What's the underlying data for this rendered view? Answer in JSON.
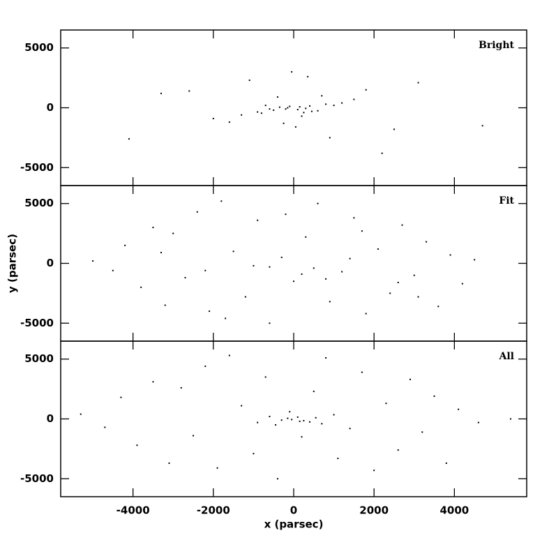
{
  "chart_data": [
    {
      "type": "scatter",
      "annotation": "Bright",
      "color": "#000000",
      "x": [
        -200,
        150,
        400,
        -500,
        800,
        -900,
        1200,
        -1300,
        300,
        -100,
        600,
        -700,
        1800,
        -2000,
        2500,
        -2600,
        3100,
        -3300,
        50,
        -400,
        900,
        -1100,
        1500,
        -1600,
        200,
        700,
        -250,
        350,
        -50,
        4700,
        -4100,
        2200,
        -150,
        100,
        -350,
        450,
        -600,
        1000,
        -800,
        250
      ],
      "y": [
        -100,
        80,
        150,
        -200,
        300,
        -350,
        400,
        -600,
        -50,
        120,
        -250,
        200,
        1500,
        -900,
        -1800,
        1400,
        2100,
        1200,
        -1600,
        900,
        -2500,
        2300,
        700,
        -1200,
        -700,
        1000,
        -1300,
        2600,
        3000,
        -1500,
        -2600,
        -3800,
        0,
        -150,
        50,
        -300,
        -100,
        200,
        -450,
        -400
      ],
      "xlim": [
        -5800,
        5800
      ],
      "ylim": [
        -6500,
        6500
      ],
      "yticks": [
        -5000,
        0,
        5000
      ]
    },
    {
      "type": "scatter",
      "annotation": "Fit",
      "color": "#000000",
      "ylabel": "y (parsec)",
      "x": [
        -5000,
        -4500,
        -4200,
        -3800,
        -3500,
        -3200,
        -3000,
        -2700,
        -2400,
        -2100,
        -1800,
        -1500,
        -1200,
        -900,
        -600,
        -300,
        0,
        300,
        600,
        900,
        1200,
        1500,
        1800,
        2100,
        2400,
        2700,
        3000,
        3300,
        3600,
        3900,
        4200,
        4500,
        -2200,
        -1000,
        200,
        1400,
        2600,
        -3300,
        -600,
        800,
        1700,
        -1700,
        3100,
        -200,
        500
      ],
      "y": [
        200,
        -600,
        1500,
        -2000,
        3000,
        -3500,
        2500,
        -1200,
        4300,
        -4000,
        5200,
        1000,
        -2800,
        3600,
        -5000,
        500,
        -1500,
        2200,
        5000,
        -3200,
        -700,
        3800,
        -4200,
        1200,
        -2500,
        3200,
        -1000,
        1800,
        -3600,
        700,
        -1700,
        300,
        -600,
        -200,
        -900,
        400,
        -1600,
        900,
        -300,
        -1300,
        2700,
        -4600,
        -2800,
        4100,
        -400
      ],
      "xlim": [
        -5800,
        5800
      ],
      "ylim": [
        -6500,
        6500
      ],
      "yticks": [
        -5000,
        0,
        5000
      ]
    },
    {
      "type": "scatter",
      "annotation": "All",
      "color": "#000000",
      "xlabel": "x (parsec)",
      "x": [
        -5300,
        -4700,
        -4300,
        -3900,
        -3500,
        -3100,
        -2800,
        -2500,
        -2200,
        -1900,
        -1600,
        -1300,
        -1000,
        -700,
        -400,
        -100,
        200,
        500,
        800,
        1100,
        1400,
        1700,
        2000,
        2300,
        2600,
        2900,
        3200,
        3500,
        3800,
        4100,
        4600,
        5400,
        -300,
        100,
        400,
        -600,
        700,
        -900,
        1000,
        -150,
        250,
        -450,
        550,
        -50,
        150
      ],
      "y": [
        400,
        -700,
        1800,
        -2200,
        3100,
        -3700,
        2600,
        -1400,
        4400,
        -4100,
        5300,
        1100,
        -2900,
        3500,
        -5000,
        600,
        -1500,
        2300,
        5100,
        -3300,
        -800,
        3900,
        -4300,
        1300,
        -2600,
        3300,
        -1100,
        1900,
        -3700,
        800,
        -300,
        0,
        -100,
        150,
        -250,
        200,
        -400,
        -300,
        350,
        50,
        -150,
        -500,
        100,
        -50,
        -200
      ],
      "xlim": [
        -5800,
        5800
      ],
      "ylim": [
        -6500,
        6500
      ],
      "yticks": [
        -5000,
        0,
        5000
      ],
      "xticks": [
        -4000,
        -2000,
        0,
        2000,
        4000
      ]
    }
  ]
}
